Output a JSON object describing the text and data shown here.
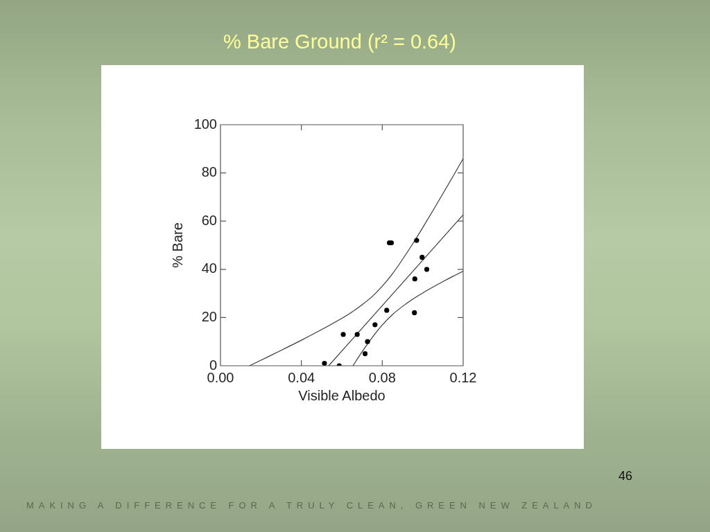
{
  "chart_data": {
    "type": "scatter",
    "title": "% Bare Ground (r² = 0.64)",
    "xlabel": "Visible Albedo",
    "ylabel": "% Bare",
    "annotations": [
      "46",
      "MAKING A DIFFERENCE FOR A TRULY CLEAN, GREEN NEW ZEALAND"
    ],
    "xlim": [
      0,
      0.12
    ],
    "xticks": [
      {
        "value": 0,
        "label": "0.00"
      },
      {
        "value": 0.04,
        "label": "0.04"
      },
      {
        "value": 0.08,
        "label": "0.08"
      },
      {
        "value": 0.12,
        "label": "0.12"
      }
    ],
    "ylim": [
      0,
      100
    ],
    "yticks": [
      0,
      20,
      40,
      60,
      80,
      100
    ],
    "grid": false,
    "legend": false,
    "series": [
      {
        "type": "scatter",
        "marker": "circle",
        "color": "#000000",
        "x": [
          0.0514,
          0.0587,
          0.0607,
          0.0676,
          0.0715,
          0.0727,
          0.0764,
          0.0822,
          0.0835,
          0.0845,
          0.0959,
          0.0961,
          0.097,
          0.0997,
          0.102
        ],
        "values": [
          1,
          0,
          13,
          13,
          5,
          10,
          17,
          23,
          51,
          51,
          22,
          36,
          52,
          45,
          40
        ]
      },
      {
        "type": "line",
        "marker": "none",
        "line_style": "solid",
        "color": "#3a3a3a",
        "x": [
          0.0535,
          0.12
        ],
        "values": [
          0,
          62.6
        ]
      },
      {
        "type": "line",
        "marker": "none",
        "line_style": "solid",
        "color": "#3a3a3a",
        "x": [
          0.0144,
          0.02,
          0.03,
          0.04,
          0.05,
          0.06,
          0.065,
          0.07,
          0.075,
          0.08,
          0.085,
          0.09,
          0.095,
          0.1,
          0.105,
          0.11,
          0.115,
          0.12
        ],
        "values": [
          0,
          2.3,
          6.4,
          10.6,
          15,
          19.7,
          22.3,
          25.3,
          28.7,
          33,
          38.1,
          44.1,
          50.5,
          57.3,
          64.3,
          71.4,
          78.6,
          85.9
        ]
      },
      {
        "type": "line",
        "marker": "none",
        "line_style": "solid",
        "color": "#3a3a3a",
        "x": [
          0.0655,
          0.07,
          0.075,
          0.08,
          0.085,
          0.09,
          0.095,
          0.1,
          0.105,
          0.11,
          0.115,
          0.12
        ],
        "values": [
          0,
          5.8,
          11.7,
          16.9,
          21.2,
          24.6,
          27.6,
          30.2,
          32.6,
          34.9,
          37.1,
          39.2
        ]
      }
    ]
  }
}
